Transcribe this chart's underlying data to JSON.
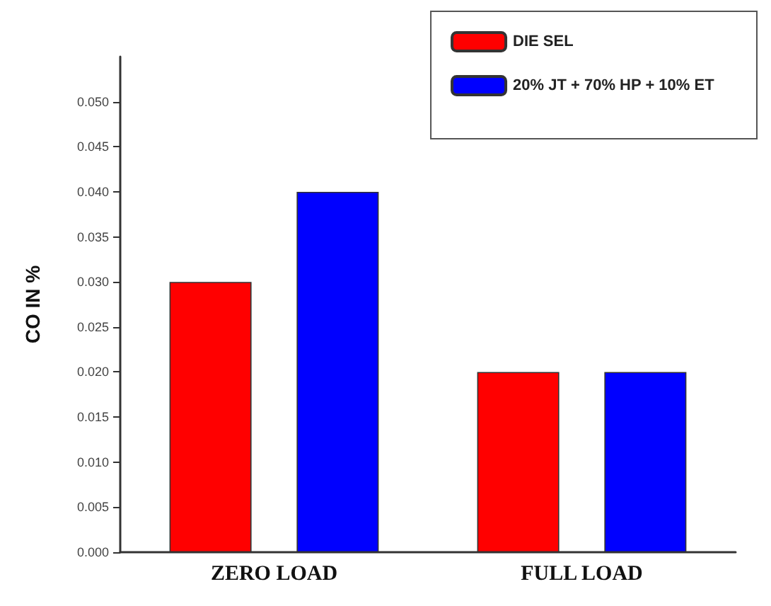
{
  "chart_data": {
    "type": "bar",
    "ylabel": "CO IN %",
    "categories": [
      "ZERO LOAD",
      "FULL LOAD"
    ],
    "series": [
      {
        "name": "DIE SEL",
        "color": "#ff0000",
        "values": [
          0.03,
          0.02
        ]
      },
      {
        "name": "20% JT + 70% HP + 10% ET",
        "color": "#0000ff",
        "values": [
          0.04,
          0.02
        ]
      }
    ],
    "ylim": [
      0,
      0.055
    ],
    "yticks": [
      {
        "value": 0,
        "label": "0.000"
      },
      {
        "value": 0.005,
        "label": "0.005"
      },
      {
        "value": 0.01,
        "label": "0.010"
      },
      {
        "value": 0.015,
        "label": "0.015"
      },
      {
        "value": 0.02,
        "label": "0.020"
      },
      {
        "value": 0.025,
        "label": "0.025"
      },
      {
        "value": 0.03,
        "label": "0.030"
      },
      {
        "value": 0.035,
        "label": "0.035"
      },
      {
        "value": 0.04,
        "label": "0.040"
      },
      {
        "value": 0.045,
        "label": "0.045"
      },
      {
        "value": 0.05,
        "label": "0.050"
      }
    ],
    "grid": false,
    "legend": "top right"
  }
}
